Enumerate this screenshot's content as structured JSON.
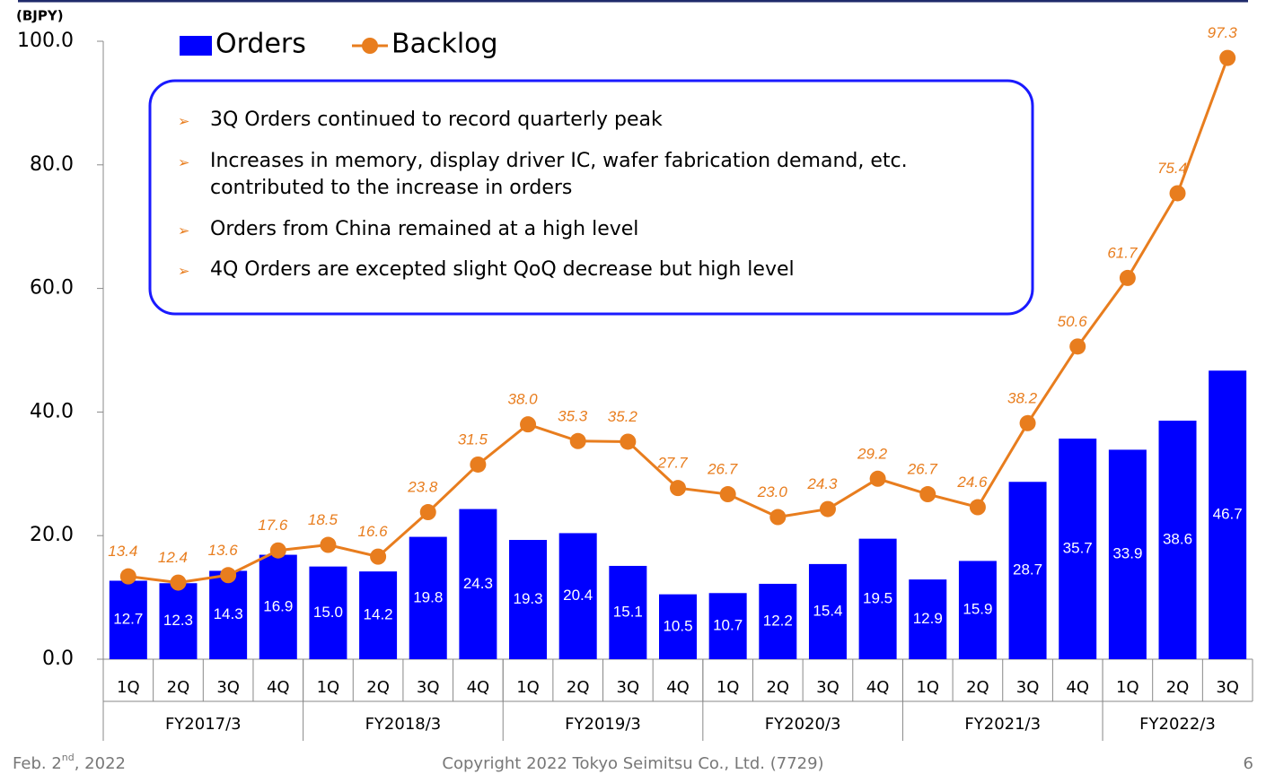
{
  "chart_data": {
    "type": "bar_line",
    "unit_label": "(BJPY)",
    "groups": [
      {
        "name": "FY2017/3",
        "quarters": [
          "1Q",
          "2Q",
          "3Q",
          "4Q"
        ]
      },
      {
        "name": "FY2018/3",
        "quarters": [
          "1Q",
          "2Q",
          "3Q",
          "4Q"
        ]
      },
      {
        "name": "FY2019/3",
        "quarters": [
          "1Q",
          "2Q",
          "3Q",
          "4Q"
        ]
      },
      {
        "name": "FY2020/3",
        "quarters": [
          "1Q",
          "2Q",
          "3Q",
          "4Q"
        ]
      },
      {
        "name": "FY2021/3",
        "quarters": [
          "1Q",
          "2Q",
          "3Q",
          "4Q"
        ]
      },
      {
        "name": "FY2022/3",
        "quarters": [
          "1Q",
          "2Q",
          "3Q"
        ]
      }
    ],
    "series": [
      {
        "name": "Orders",
        "kind": "bar",
        "color": "#0000ff",
        "label_color": "#ffffff",
        "values": [
          12.7,
          12.3,
          14.3,
          16.9,
          15.0,
          14.2,
          19.8,
          24.3,
          19.3,
          20.4,
          15.1,
          10.5,
          10.7,
          12.2,
          15.4,
          19.5,
          12.9,
          15.9,
          28.7,
          35.7,
          33.9,
          38.6,
          46.7
        ],
        "value_labels": [
          "12.7",
          "12.3",
          "14.3",
          "16.9",
          "15.0",
          "14.2",
          "19.8",
          "24.3",
          "19.3",
          "20.4",
          "15.1",
          "10.5",
          "10.7",
          "12.2",
          "15.4",
          "19.5",
          "12.9",
          "15.9",
          "28.7",
          "35.7",
          "33.9",
          "38.6",
          "46.7"
        ]
      },
      {
        "name": "Backlog",
        "kind": "line",
        "color": "#e87d1e",
        "label_color": "#e87d1e",
        "values": [
          13.4,
          12.4,
          13.6,
          17.6,
          18.5,
          16.6,
          23.8,
          31.5,
          38.0,
          35.3,
          35.2,
          27.7,
          26.7,
          23.0,
          24.3,
          29.2,
          26.7,
          24.6,
          38.2,
          50.6,
          61.7,
          75.4,
          97.3
        ],
        "value_labels": [
          "13.4",
          "12.4",
          "13.6",
          "17.6",
          "18.5",
          "16.6",
          "23.8",
          "31.5",
          "38.0",
          "35.3",
          "35.2",
          "27.7",
          "26.7",
          "23.0",
          "24.3",
          "29.2",
          "26.7",
          "24.6",
          "38.2",
          "50.6",
          "61.7",
          "75.4",
          "97.3"
        ]
      }
    ],
    "ylim": [
      0,
      100
    ],
    "yticks": [
      {
        "value": 0,
        "label": "0.0"
      },
      {
        "value": 20,
        "label": "20.0"
      },
      {
        "value": 40,
        "label": "40.0"
      },
      {
        "value": 60,
        "label": "60.0"
      },
      {
        "value": 80,
        "label": "80.0"
      },
      {
        "value": 100,
        "label": "100.0"
      }
    ],
    "annotations": [
      [
        "3Q Orders continued to record quarterly peak"
      ],
      [
        "Increases in memory, display driver IC, wafer fabrication demand, etc.",
        "contributed to the increase in orders"
      ],
      [
        "Orders from China remained at a high level"
      ],
      [
        "4Q Orders are excepted slight QoQ decrease but high level"
      ]
    ]
  },
  "footer": {
    "date": [
      "Feb. 2",
      "nd",
      ", 2022"
    ],
    "copyright": "Copyright  2022 Tokyo Seimitsu Co., Ltd. (7729)",
    "page": "6"
  }
}
